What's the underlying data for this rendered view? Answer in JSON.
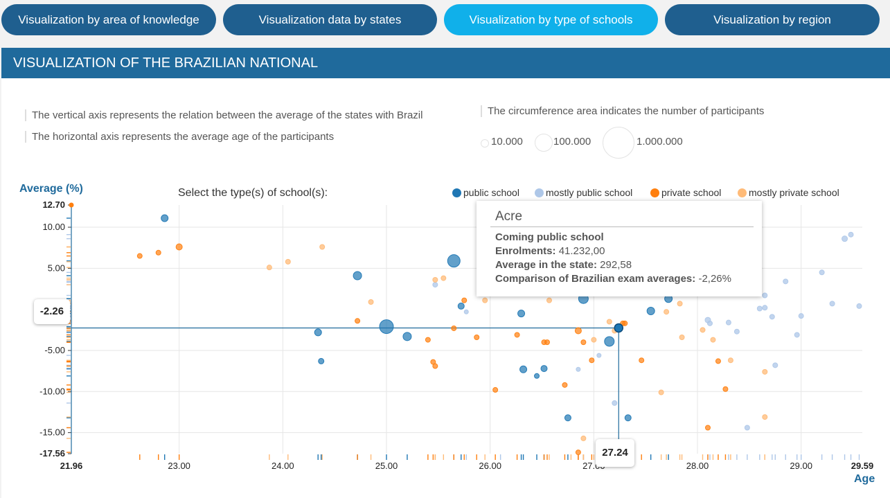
{
  "tabs": [
    {
      "label": "Visualization by area of knowledge"
    },
    {
      "label": "Visualization data by states"
    },
    {
      "label": "Visualization by type of schools"
    },
    {
      "label": "Visualization by region"
    }
  ],
  "panel": {
    "title": "VISUALIZATION OF THE BRAZILIAN NATIONAL"
  },
  "notes": {
    "vertical": "The vertical axis represents the relation between the average of the states with Brazil",
    "horizontal": "The horizontal axis represents the average age of the participants",
    "circumference": "The circumference area indicates the number of participants"
  },
  "size_legend": [
    "10.000",
    "100.000",
    "1.000.000"
  ],
  "select_label": "Select the type(s) of school(s):",
  "legend": [
    {
      "label": "public school",
      "color": "#1f77b4"
    },
    {
      "label": "mostly public school",
      "color": "#aec7e8"
    },
    {
      "label": "private school",
      "color": "#ff7f0e"
    },
    {
      "label": "mostly private school",
      "color": "#ffbb78"
    }
  ],
  "tooltip": {
    "title": "Acre",
    "line1": "Coming public school",
    "enrol_label": "Enrolments:",
    "enrol_value": "41.232,00",
    "avg_label": "Average in the state:",
    "avg_value": "292,58",
    "cmp_label": "Comparison of Brazilian exam averages:",
    "cmp_value": "-2,26%"
  },
  "callouts": {
    "y": "-2.26",
    "x": "27.24"
  },
  "chart_data": {
    "type": "scatter",
    "title": "",
    "xlabel": "Age",
    "ylabel": "Average (%)",
    "xlim": [
      21.96,
      29.59
    ],
    "ylim": [
      -17.56,
      12.7
    ],
    "x_ticks": [
      "21.96",
      "23.00",
      "24.00",
      "25.00",
      "26.00",
      "27.00",
      "28.00",
      "29.00",
      "29.59"
    ],
    "y_ticks": [
      "12.70",
      "10.00",
      "5.00",
      "-2.26",
      "-5.00",
      "-10.00",
      "-15.00",
      "-17.56"
    ],
    "highlight": {
      "x": 27.24,
      "y": -2.26
    },
    "series": [
      {
        "name": "public school",
        "color": "#1f77b4",
        "points": [
          [
            22.86,
            11.1,
            5
          ],
          [
            24.34,
            -2.8,
            5
          ],
          [
            24.37,
            -6.3,
            4
          ],
          [
            24.72,
            4.1,
            6
          ],
          [
            25.0,
            -2.1,
            10
          ],
          [
            25.2,
            -3.3,
            6
          ],
          [
            25.65,
            5.9,
            9
          ],
          [
            25.72,
            0.4,
            4.5
          ],
          [
            26.3,
            -0.5,
            5
          ],
          [
            26.32,
            -7.3,
            5
          ],
          [
            26.45,
            -8.1,
            3.5
          ],
          [
            26.52,
            -7.2,
            4.5
          ],
          [
            26.75,
            -13.2,
            4.5
          ],
          [
            26.9,
            1.3,
            7
          ],
          [
            27.15,
            -3.9,
            7
          ],
          [
            27.24,
            -2.26,
            6
          ],
          [
            27.33,
            -13.2,
            4.5
          ],
          [
            27.55,
            -0.2,
            5.5
          ],
          [
            27.72,
            1.3,
            5.5
          ],
          [
            27.25,
            -2.3,
            4
          ]
        ]
      },
      {
        "name": "mostly public school",
        "color": "#aec7e8",
        "points": [
          [
            25.47,
            3.0,
            3.5
          ],
          [
            25.77,
            -0.3,
            3
          ],
          [
            26.1,
            3.3,
            3
          ],
          [
            26.85,
            -7.3,
            3
          ],
          [
            27.05,
            -5.6,
            3
          ],
          [
            27.2,
            -11.4,
            3.5
          ],
          [
            28.1,
            -1.3,
            4
          ],
          [
            28.12,
            -1.7,
            3.5
          ],
          [
            28.3,
            -1.6,
            3.5
          ],
          [
            28.38,
            -2.7,
            3.5
          ],
          [
            28.48,
            -14.4,
            3.5
          ],
          [
            28.6,
            0.1,
            3.5
          ],
          [
            28.65,
            0.2,
            3.5
          ],
          [
            28.72,
            -0.9,
            3.5
          ],
          [
            28.75,
            -6.8,
            3.5
          ],
          [
            28.85,
            3.4,
            3.5
          ],
          [
            28.96,
            -3.1,
            3.5
          ],
          [
            29.0,
            -0.8,
            3.5
          ],
          [
            29.2,
            4.5,
            3.5
          ],
          [
            29.3,
            0.7,
            3.5
          ],
          [
            29.42,
            8.6,
            4
          ],
          [
            29.48,
            9.1,
            3.5
          ],
          [
            29.56,
            0.4,
            3.5
          ],
          [
            28.65,
            1.7,
            3.5
          ]
        ]
      },
      {
        "name": "private school",
        "color": "#ff7f0e",
        "points": [
          [
            22.62,
            6.5,
            3.5
          ],
          [
            22.8,
            6.9,
            3.5
          ],
          [
            23.0,
            7.6,
            4.5
          ],
          [
            24.72,
            -1.4,
            3.5
          ],
          [
            25.4,
            -3.7,
            3.5
          ],
          [
            25.45,
            -6.4,
            3.5
          ],
          [
            25.47,
            -6.9,
            3.5
          ],
          [
            25.65,
            -2.3,
            3.5
          ],
          [
            25.75,
            1.1,
            3.5
          ],
          [
            25.87,
            -3.4,
            3.5
          ],
          [
            26.05,
            -9.8,
            3.5
          ],
          [
            26.26,
            -3.1,
            3.5
          ],
          [
            26.52,
            -4.0,
            3.5
          ],
          [
            26.55,
            -4.0,
            3.5
          ],
          [
            26.72,
            -9.2,
            3.5
          ],
          [
            26.85,
            -2.6,
            4.5
          ],
          [
            26.9,
            -4.0,
            3.5
          ],
          [
            26.98,
            -6.2,
            3.5
          ],
          [
            27.46,
            -6.2,
            3.5
          ],
          [
            27.3,
            -1.7,
            3.5
          ],
          [
            28.2,
            -6.3,
            3.5
          ],
          [
            28.27,
            -9.7,
            3.5
          ],
          [
            28.1,
            -14.4,
            3.5
          ],
          [
            26.85,
            -17.4,
            3.5
          ],
          [
            27.28,
            -1.7,
            3.5
          ]
        ]
      },
      {
        "name": "mostly private school",
        "color": "#ffbb78",
        "points": [
          [
            23.87,
            5.1,
            3.5
          ],
          [
            24.05,
            5.8,
            3.5
          ],
          [
            24.38,
            7.6,
            3.5
          ],
          [
            24.85,
            0.9,
            3.5
          ],
          [
            25.55,
            3.8,
            3.5
          ],
          [
            25.95,
            1.1,
            3.5
          ],
          [
            26.57,
            1.1,
            3.5
          ],
          [
            26.78,
            3.6,
            3.5
          ],
          [
            27.0,
            -3.7,
            3.5
          ],
          [
            27.15,
            -1.5,
            3.5
          ],
          [
            27.2,
            -2.6,
            3.5
          ],
          [
            27.35,
            3.0,
            3.5
          ],
          [
            27.7,
            -0.3,
            3.5
          ],
          [
            27.65,
            -10.1,
            3.5
          ],
          [
            27.85,
            -3.4,
            3.5
          ],
          [
            27.83,
            0.7,
            3.5
          ],
          [
            28.05,
            -2.5,
            3.5
          ],
          [
            28.15,
            -3.7,
            3.5
          ],
          [
            28.32,
            -6.2,
            3.5
          ],
          [
            28.65,
            -7.6,
            3.5
          ],
          [
            28.65,
            -13.1,
            3.5
          ],
          [
            26.9,
            -15.7,
            3.5
          ],
          [
            25.47,
            3.6,
            3.5
          ]
        ]
      }
    ]
  }
}
